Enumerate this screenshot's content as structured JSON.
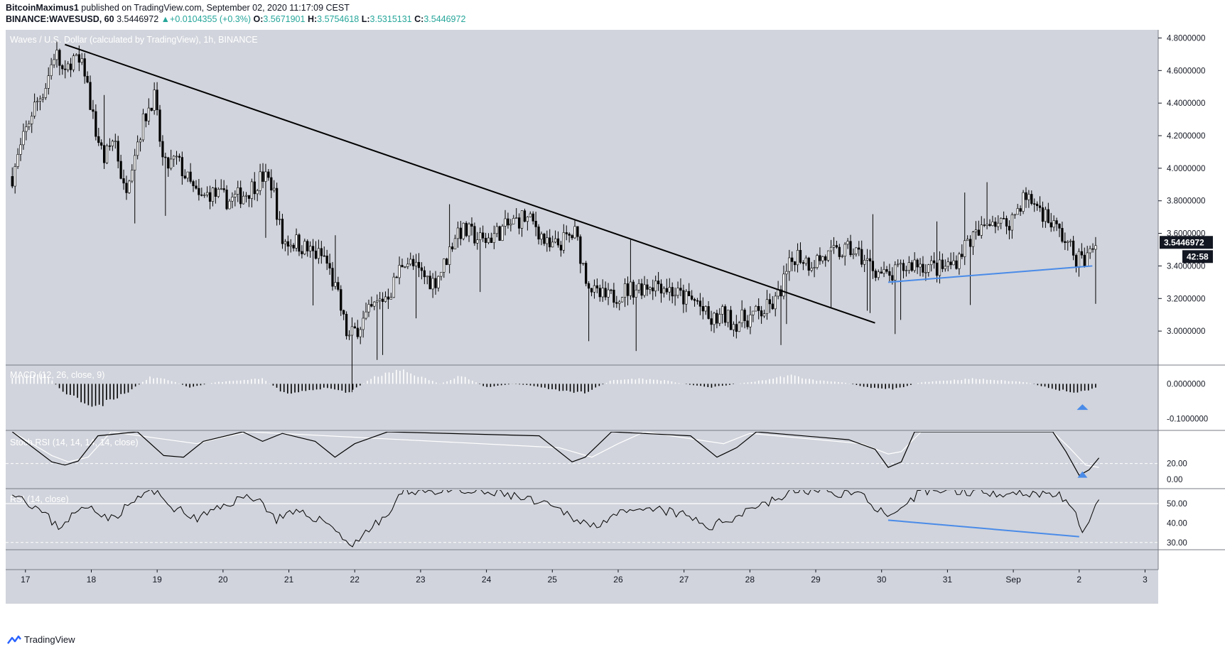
{
  "header": {
    "author": "BitcoinMaximus1",
    "published": " published on TradingView.com, September 02, 2020 11:17:09 CEST",
    "symbol": "BINANCE:WAVESUSD, 60",
    "last": "3.5446972",
    "arrow": "▲",
    "change": "+0.0104355 (+0.3%)",
    "o_label": "O:",
    "o": "3.5671901",
    "h_label": "H:",
    "h": "3.5754618",
    "l_label": "L:",
    "l": "3.5315131",
    "c_label": "C:",
    "c": "3.5446972"
  },
  "footer": {
    "brand": "TradingView"
  },
  "colors": {
    "pane_bg": "#d1d4dc",
    "up_text": "#26a69a",
    "trend": "#000000",
    "support": "#4a8be8"
  },
  "chart_data": [
    {
      "type": "candlestick",
      "title": "Waves / U.S. Dollar (calculated by TradingView), 1h, BINANCE",
      "x_ticks": [
        "17",
        "18",
        "19",
        "20",
        "21",
        "22",
        "23",
        "24",
        "25",
        "26",
        "27",
        "28",
        "29",
        "30",
        "31",
        "Sep",
        "2",
        "3"
      ],
      "y_ticks": [
        "4.8000000",
        "4.6000000",
        "4.4000000",
        "4.2000000",
        "4.0000000",
        "3.8000000",
        "3.6000000",
        "3.4000000",
        "3.2000000",
        "3.0000000"
      ],
      "ylim": [
        2.8,
        4.85
      ],
      "last_price_label": "3.5446972",
      "countdown_label": "42:58",
      "price_path": [
        [
          17.0,
          3.95
        ],
        [
          17.3,
          4.35
        ],
        [
          17.5,
          4.5
        ],
        [
          17.65,
          4.72
        ],
        [
          17.8,
          4.55
        ],
        [
          17.9,
          4.68
        ],
        [
          18.1,
          4.6
        ],
        [
          18.25,
          4.25
        ],
        [
          18.4,
          4.05
        ],
        [
          18.55,
          4.2
        ],
        [
          18.7,
          3.85
        ],
        [
          18.85,
          4.1
        ],
        [
          19.0,
          4.3
        ],
        [
          19.15,
          4.45
        ],
        [
          19.3,
          4.0
        ],
        [
          19.5,
          4.05
        ],
        [
          19.7,
          3.9
        ],
        [
          19.85,
          3.8
        ],
        [
          20.0,
          3.85
        ],
        [
          20.3,
          3.8
        ],
        [
          20.55,
          3.85
        ],
        [
          20.8,
          3.95
        ],
        [
          20.95,
          3.9
        ],
        [
          21.1,
          3.55
        ],
        [
          21.3,
          3.55
        ],
        [
          21.55,
          3.48
        ],
        [
          21.75,
          3.45
        ],
        [
          21.95,
          3.2
        ],
        [
          22.1,
          2.95
        ],
        [
          22.3,
          3.05
        ],
        [
          22.5,
          3.15
        ],
        [
          22.75,
          3.25
        ],
        [
          22.95,
          3.45
        ],
        [
          23.2,
          3.35
        ],
        [
          23.4,
          3.3
        ],
        [
          23.55,
          3.4
        ],
        [
          23.75,
          3.62
        ],
        [
          23.95,
          3.6
        ],
        [
          24.15,
          3.55
        ],
        [
          24.35,
          3.6
        ],
        [
          24.55,
          3.65
        ],
        [
          24.75,
          3.7
        ],
        [
          24.95,
          3.65
        ],
        [
          25.15,
          3.5
        ],
        [
          25.35,
          3.55
        ],
        [
          25.55,
          3.6
        ],
        [
          25.7,
          3.35
        ],
        [
          25.85,
          3.22
        ],
        [
          26.05,
          3.2
        ],
        [
          26.3,
          3.25
        ],
        [
          26.6,
          3.28
        ],
        [
          26.8,
          3.3
        ],
        [
          27.0,
          3.25
        ],
        [
          27.2,
          3.2
        ],
        [
          27.4,
          3.18
        ],
        [
          27.6,
          3.05
        ],
        [
          27.8,
          3.1
        ],
        [
          27.95,
          3.05
        ],
        [
          28.15,
          3.08
        ],
        [
          28.4,
          3.12
        ],
        [
          28.6,
          3.18
        ],
        [
          28.75,
          3.35
        ],
        [
          28.9,
          3.48
        ],
        [
          29.1,
          3.42
        ],
        [
          29.3,
          3.45
        ],
        [
          29.55,
          3.48
        ],
        [
          29.75,
          3.5
        ],
        [
          29.9,
          3.45
        ],
        [
          30.1,
          3.38
        ],
        [
          30.3,
          3.32
        ],
        [
          30.5,
          3.38
        ],
        [
          30.7,
          3.42
        ],
        [
          30.9,
          3.4
        ],
        [
          31.1,
          3.38
        ],
        [
          31.3,
          3.42
        ],
        [
          31.5,
          3.55
        ],
        [
          31.7,
          3.6
        ],
        [
          31.85,
          3.7
        ],
        [
          32.05,
          3.65
        ],
        [
          32.2,
          3.7
        ],
        [
          32.35,
          3.82
        ],
        [
          32.55,
          3.78
        ],
        [
          32.75,
          3.68
        ],
        [
          32.95,
          3.58
        ],
        [
          33.15,
          3.45
        ],
        [
          33.3,
          3.43
        ],
        [
          33.45,
          3.55
        ]
      ],
      "trendline": {
        "from": [
          17.8,
          4.76
        ],
        "to": [
          30.1,
          3.05
        ]
      },
      "support_line": {
        "from": [
          30.3,
          3.3
        ],
        "to": [
          33.4,
          3.4
        ]
      }
    },
    {
      "type": "bar",
      "title": "MACD (12, 26, close, 9)",
      "y_ticks": [
        "0.0000000",
        "-0.1000000"
      ],
      "ylim": [
        -0.13,
        0.05
      ],
      "hist_path": [
        [
          17.0,
          0.02
        ],
        [
          17.5,
          0.03
        ],
        [
          17.75,
          -0.02
        ],
        [
          18.25,
          -0.07
        ],
        [
          18.7,
          -0.03
        ],
        [
          19.1,
          0.02
        ],
        [
          19.4,
          0.01
        ],
        [
          19.7,
          -0.01
        ],
        [
          20.1,
          0.005
        ],
        [
          20.5,
          0.01
        ],
        [
          20.8,
          0.015
        ],
        [
          21.15,
          -0.03
        ],
        [
          21.5,
          -0.02
        ],
        [
          21.8,
          -0.01
        ],
        [
          22.1,
          -0.025
        ],
        [
          22.5,
          0.02
        ],
        [
          22.9,
          0.04
        ],
        [
          23.2,
          0.02
        ],
        [
          23.5,
          0.0
        ],
        [
          23.8,
          0.025
        ],
        [
          24.2,
          -0.01
        ],
        [
          24.6,
          0.0
        ],
        [
          24.9,
          -0.005
        ],
        [
          25.3,
          -0.02
        ],
        [
          25.7,
          -0.025
        ],
        [
          26.1,
          0.01
        ],
        [
          26.5,
          0.015
        ],
        [
          26.9,
          0.01
        ],
        [
          27.2,
          0.0
        ],
        [
          27.6,
          -0.01
        ],
        [
          28.0,
          0.0
        ],
        [
          28.4,
          0.01
        ],
        [
          28.8,
          0.025
        ],
        [
          29.2,
          0.01
        ],
        [
          29.6,
          0.005
        ],
        [
          30.0,
          -0.01
        ],
        [
          30.4,
          -0.015
        ],
        [
          30.8,
          0.005
        ],
        [
          31.2,
          0.01
        ],
        [
          31.6,
          0.015
        ],
        [
          32.0,
          0.01
        ],
        [
          32.4,
          0.005
        ],
        [
          32.8,
          -0.015
        ],
        [
          33.2,
          -0.025
        ],
        [
          33.45,
          -0.01
        ]
      ],
      "marker": {
        "x": 33.25,
        "type": "blue-triangle-up"
      }
    },
    {
      "type": "line",
      "title": "Stoch RSI (14, 14, 14, 14, close)",
      "y_ticks": [
        "20.00",
        "0.00"
      ],
      "ylim": [
        -10,
        60
      ],
      "reference_lines": [
        20
      ],
      "k_path": [
        [
          17.0,
          60
        ],
        [
          17.6,
          22
        ],
        [
          17.8,
          18
        ],
        [
          18.0,
          23
        ],
        [
          18.3,
          55
        ],
        [
          18.9,
          60
        ],
        [
          19.3,
          30
        ],
        [
          19.6,
          28
        ],
        [
          19.9,
          48
        ],
        [
          20.5,
          60
        ],
        [
          20.8,
          48
        ],
        [
          21.1,
          58
        ],
        [
          21.6,
          48
        ],
        [
          21.9,
          28
        ],
        [
          22.2,
          45
        ],
        [
          22.7,
          60
        ],
        [
          25.0,
          55
        ],
        [
          25.5,
          22
        ],
        [
          25.7,
          28
        ],
        [
          26.1,
          60
        ],
        [
          27.3,
          55
        ],
        [
          27.7,
          28
        ],
        [
          28.0,
          40
        ],
        [
          28.3,
          60
        ],
        [
          29.7,
          50
        ],
        [
          30.1,
          38
        ],
        [
          30.3,
          15
        ],
        [
          30.5,
          22
        ],
        [
          30.7,
          60
        ],
        [
          32.8,
          60
        ],
        [
          33.0,
          35
        ],
        [
          33.2,
          5
        ],
        [
          33.35,
          12
        ],
        [
          33.5,
          27
        ]
      ],
      "d_path": [
        [
          17.0,
          60
        ],
        [
          17.6,
          30
        ],
        [
          17.85,
          22
        ],
        [
          18.15,
          28
        ],
        [
          18.5,
          60
        ],
        [
          19.8,
          45
        ],
        [
          20.3,
          55
        ],
        [
          20.6,
          60
        ],
        [
          25.3,
          40
        ],
        [
          25.8,
          28
        ],
        [
          26.2,
          45
        ],
        [
          26.6,
          60
        ],
        [
          27.8,
          45
        ],
        [
          28.2,
          58
        ],
        [
          29.9,
          45
        ],
        [
          30.3,
          32
        ],
        [
          30.5,
          35
        ],
        [
          30.8,
          60
        ],
        [
          32.8,
          60
        ],
        [
          33.05,
          40
        ],
        [
          33.3,
          18
        ],
        [
          33.5,
          15
        ]
      ],
      "marker": {
        "x": 33.25,
        "type": "blue-triangle-up"
      }
    },
    {
      "type": "line",
      "title": "RSI (14, close)",
      "y_ticks": [
        "50.00",
        "40.00",
        "30.00"
      ],
      "ylim": [
        27,
        57
      ],
      "reference_lines": [
        50,
        30
      ],
      "rsi_path": [
        [
          17.0,
          57
        ],
        [
          17.4,
          47
        ],
        [
          17.7,
          38
        ],
        [
          17.95,
          45
        ],
        [
          18.2,
          49
        ],
        [
          18.5,
          42
        ],
        [
          18.8,
          50
        ],
        [
          19.1,
          57
        ],
        [
          19.5,
          47
        ],
        [
          19.8,
          42
        ],
        [
          20.1,
          47
        ],
        [
          20.4,
          52
        ],
        [
          20.7,
          54
        ],
        [
          21.0,
          42
        ],
        [
          21.3,
          45
        ],
        [
          21.6,
          43
        ],
        [
          21.9,
          38
        ],
        [
          22.1,
          28
        ],
        [
          22.4,
          36
        ],
        [
          22.7,
          44
        ],
        [
          22.95,
          57
        ],
        [
          24.5,
          55
        ],
        [
          25.2,
          48
        ],
        [
          25.6,
          42
        ],
        [
          25.8,
          38
        ],
        [
          26.1,
          44
        ],
        [
          26.4,
          45
        ],
        [
          26.8,
          47
        ],
        [
          27.2,
          44
        ],
        [
          27.6,
          38
        ],
        [
          27.9,
          42
        ],
        [
          28.2,
          48
        ],
        [
          28.6,
          52
        ],
        [
          28.9,
          57
        ],
        [
          29.9,
          55
        ],
        [
          30.15,
          47
        ],
        [
          30.35,
          42
        ],
        [
          30.55,
          47
        ],
        [
          30.8,
          57
        ],
        [
          32.9,
          55
        ],
        [
          33.1,
          46
        ],
        [
          33.25,
          37
        ],
        [
          33.4,
          45
        ],
        [
          33.5,
          50
        ]
      ],
      "divergence_line": {
        "from": [
          30.3,
          41.5
        ],
        "to": [
          33.2,
          33
        ]
      }
    }
  ]
}
